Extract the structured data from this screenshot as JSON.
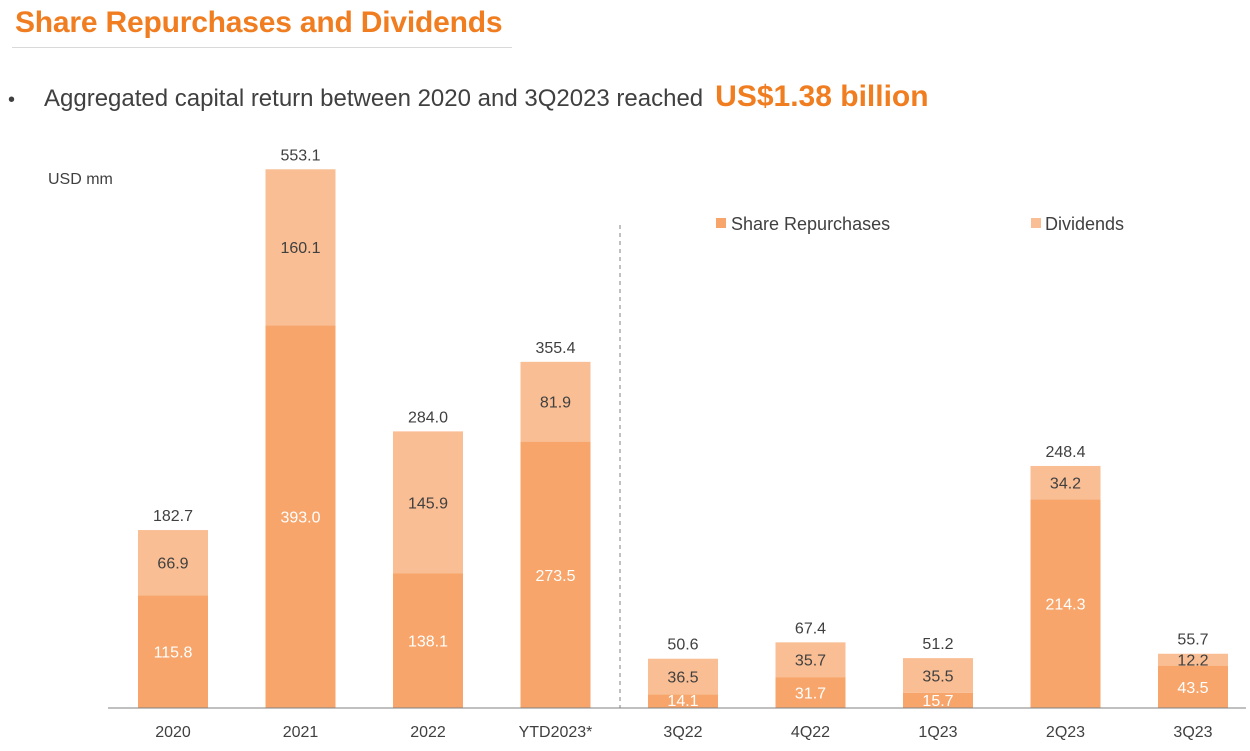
{
  "page": {
    "title": "Share Repurchases and Dividends",
    "bullet": {
      "text": "Aggregated capital return between 2020 and 3Q2023 reached",
      "highlight": "US$1.38 billion"
    }
  },
  "colors": {
    "accent": "#f07d20",
    "share_repurchases": "#f7a56a",
    "dividends": "#f9be94",
    "text": "#404040",
    "axis": "#808080"
  },
  "chart_data": {
    "type": "bar",
    "stacked": true,
    "unit_label": "USD mm",
    "categories": [
      "2020",
      "2021",
      "2022",
      "YTD2023*",
      "3Q22",
      "4Q22",
      "1Q23",
      "2Q23",
      "3Q23"
    ],
    "series": [
      {
        "name": "Share Repurchases",
        "values": [
          115.8,
          393.0,
          138.1,
          273.5,
          14.1,
          31.7,
          15.7,
          214.3,
          43.5
        ]
      },
      {
        "name": "Dividends",
        "values": [
          66.9,
          160.1,
          145.9,
          81.9,
          36.5,
          35.7,
          35.5,
          34.2,
          12.2
        ]
      }
    ],
    "totals": [
      182.7,
      553.1,
      284.0,
      355.4,
      50.6,
      67.4,
      51.2,
      248.4,
      55.7
    ],
    "legend_position": "top-right (right panel)",
    "panels": [
      {
        "categories": [
          "2020",
          "2021",
          "2022",
          "YTD2023*"
        ]
      },
      {
        "categories": [
          "3Q22",
          "4Q22",
          "1Q23",
          "2Q23",
          "3Q23"
        ]
      }
    ],
    "separator": "dashed vertical line between YTD2023* and 3Q22",
    "grid": false
  }
}
